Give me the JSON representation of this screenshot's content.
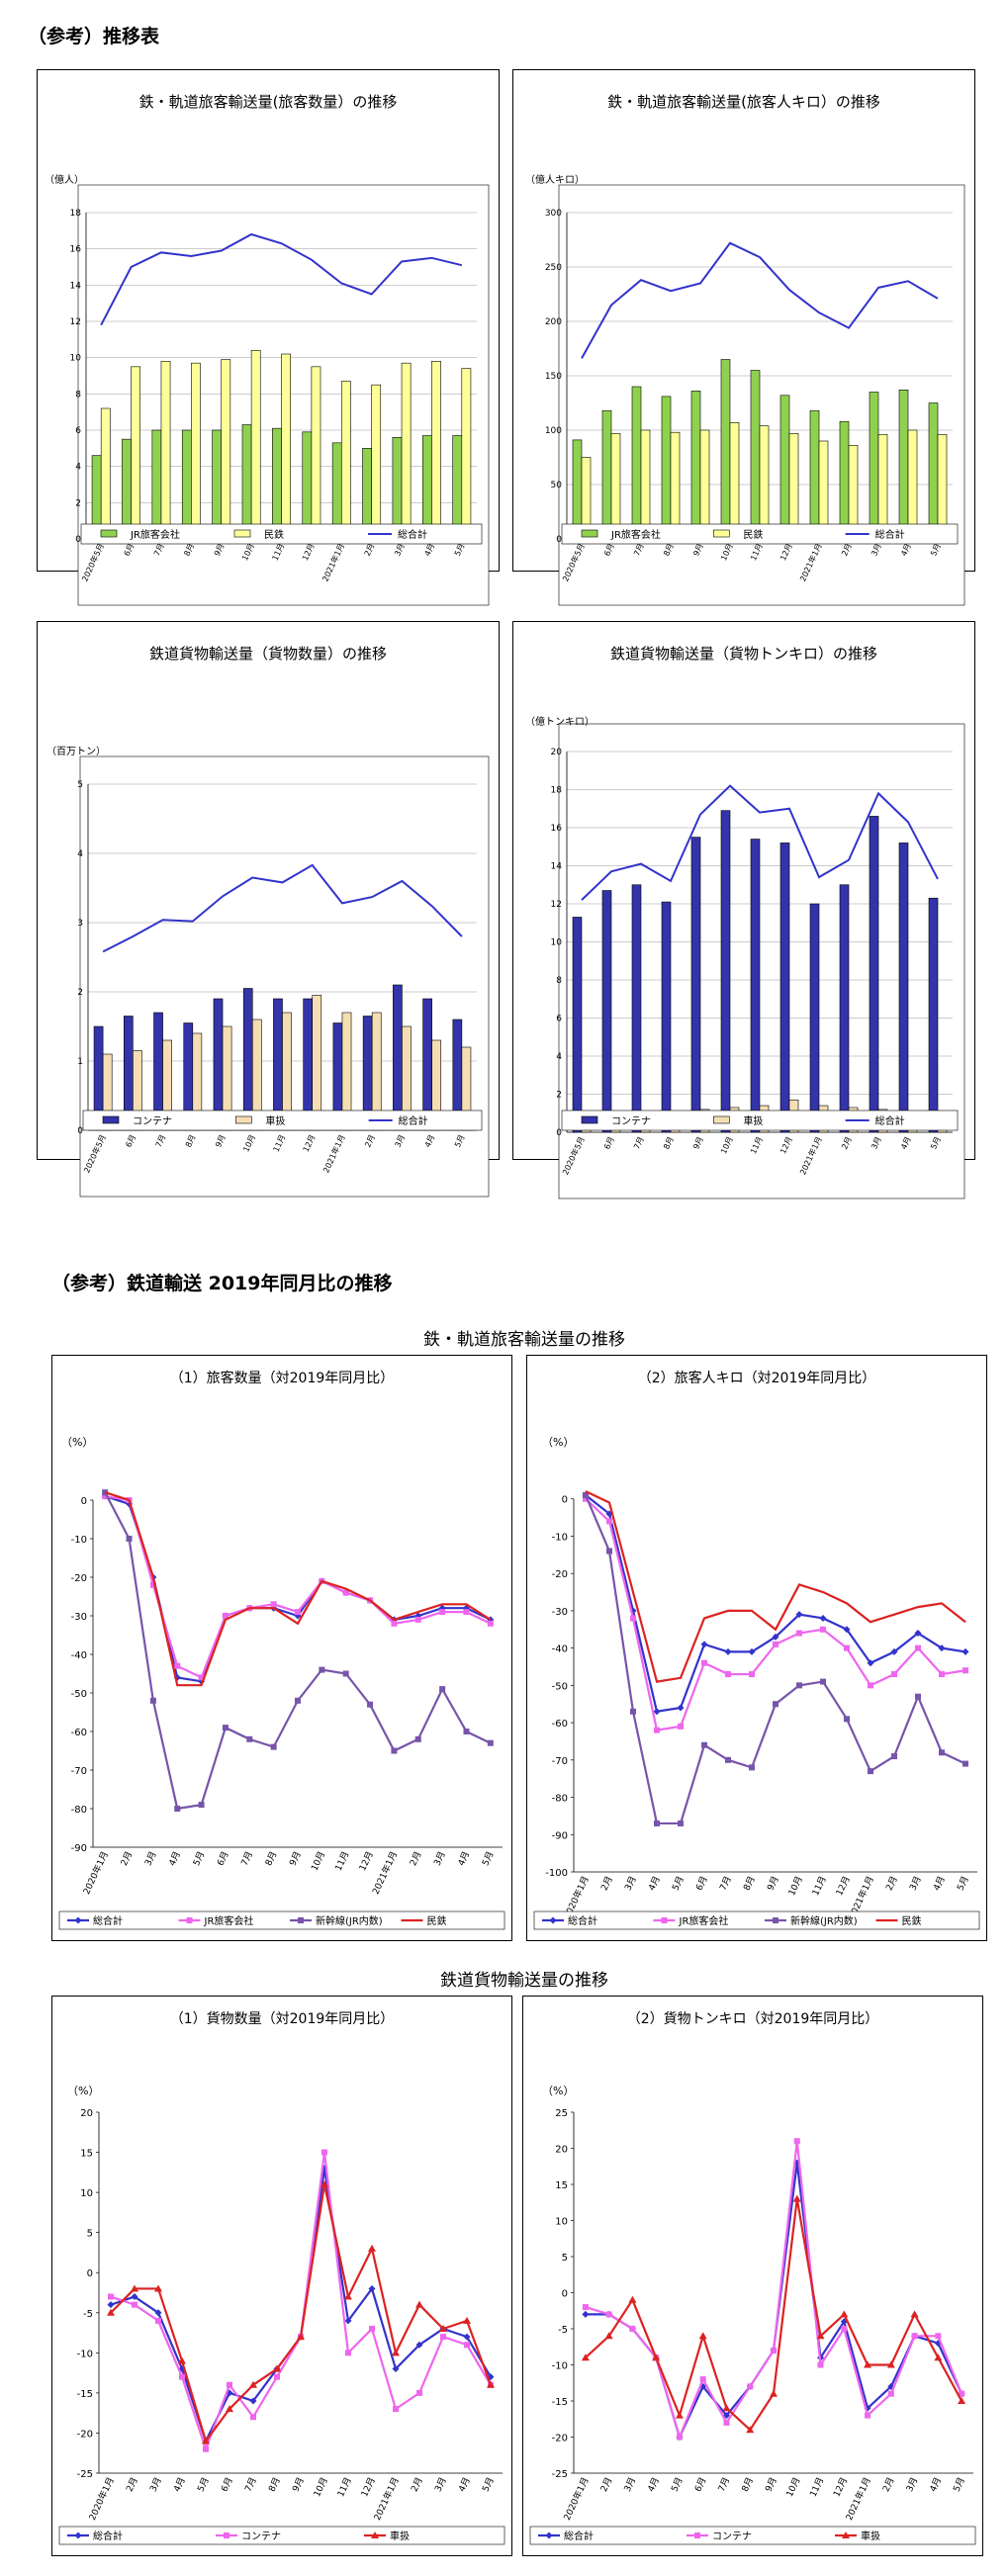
{
  "section1": {
    "title": "（参考）推移表"
  },
  "section2": {
    "title": "（参考）鉄道輸送 2019年同月比の推移"
  },
  "group_passenger_title": "鉄・軌道旅客輸送量の推移",
  "group_freight_title": "鉄道貨物輸送量の推移",
  "colors": {
    "jr": "#8fd14f",
    "private": "#ffff99",
    "total": "#3333cc",
    "container": "#3333aa",
    "wagon": "#f5deb3",
    "pct_total": "#3333cc",
    "pct_jr": "#ee66ee",
    "pct_shinkansen": "#7755aa",
    "pct_private": "#dd2222"
  },
  "chart_data": [
    {
      "id": "c1",
      "type": "bar",
      "title": "鉄・軌道旅客輸送量(旅客数量）の推移",
      "ylabel": "（億人）",
      "ylim": [
        0,
        18
      ],
      "ystep": 2,
      "categories": [
        "2020年5月",
        "6月",
        "7月",
        "8月",
        "9月",
        "10月",
        "11月",
        "12月",
        "2021年1月",
        "2月",
        "3月",
        "4月",
        "5月"
      ],
      "series": [
        {
          "name": "JR旅客会社",
          "kind": "bar",
          "color": "#8fd14f",
          "values": [
            4.6,
            5.5,
            6.0,
            6.0,
            6.0,
            6.3,
            6.1,
            5.9,
            5.3,
            5.0,
            5.6,
            5.7,
            5.7
          ]
        },
        {
          "name": "民鉄",
          "kind": "bar",
          "color": "#ffff99",
          "values": [
            7.2,
            9.5,
            9.8,
            9.7,
            9.9,
            10.4,
            10.2,
            9.5,
            8.7,
            8.5,
            9.7,
            9.8,
            9.4
          ]
        },
        {
          "name": "総合計",
          "kind": "line",
          "color": "#3333cc",
          "values": [
            11.8,
            15.0,
            15.8,
            15.6,
            15.9,
            16.8,
            16.3,
            15.4,
            14.1,
            13.5,
            15.3,
            15.5,
            15.1
          ]
        }
      ]
    },
    {
      "id": "c2",
      "type": "bar",
      "title": "鉄・軌道旅客輸送量(旅客人キロ）の推移",
      "ylabel": "（億人キロ）",
      "ylim": [
        0,
        300
      ],
      "ystep": 50,
      "categories": [
        "2020年5月",
        "6月",
        "7月",
        "8月",
        "9月",
        "10月",
        "11月",
        "12月",
        "2021年1月",
        "2月",
        "3月",
        "4月",
        "5月"
      ],
      "series": [
        {
          "name": "JR旅客会社",
          "kind": "bar",
          "color": "#8fd14f",
          "values": [
            91,
            118,
            140,
            131,
            136,
            165,
            155,
            132,
            118,
            108,
            135,
            137,
            125
          ]
        },
        {
          "name": "民鉄",
          "kind": "bar",
          "color": "#ffff99",
          "values": [
            75,
            97,
            100,
            98,
            100,
            107,
            104,
            97,
            90,
            86,
            96,
            100,
            96
          ]
        },
        {
          "name": "総合計",
          "kind": "line",
          "color": "#3333cc",
          "values": [
            166,
            215,
            238,
            228,
            235,
            272,
            259,
            229,
            208,
            194,
            231,
            237,
            221
          ]
        }
      ]
    },
    {
      "id": "c3",
      "type": "bar",
      "title": "鉄道貨物輸送量（貨物数量）の推移",
      "ylabel": "（百万トン）",
      "ylim": [
        0,
        5
      ],
      "ystep": 1,
      "categories": [
        "2020年5月",
        "6月",
        "7月",
        "8月",
        "9月",
        "10月",
        "11月",
        "12月",
        "2021年1月",
        "2月",
        "3月",
        "4月",
        "5月"
      ],
      "series": [
        {
          "name": "コンテナ",
          "kind": "bar",
          "color": "#3333aa",
          "values": [
            1.5,
            1.65,
            1.7,
            1.55,
            1.9,
            2.05,
            1.9,
            1.9,
            1.55,
            1.65,
            2.1,
            1.9,
            1.6
          ]
        },
        {
          "name": "車扱",
          "kind": "bar",
          "color": "#f5deb3",
          "values": [
            1.1,
            1.15,
            1.3,
            1.4,
            1.5,
            1.6,
            1.7,
            1.95,
            1.7,
            1.7,
            1.5,
            1.3,
            1.2
          ]
        },
        {
          "name": "総合計",
          "kind": "line",
          "color": "#3333cc",
          "values": [
            2.58,
            2.8,
            3.04,
            3.02,
            3.38,
            3.65,
            3.58,
            3.83,
            3.28,
            3.37,
            3.6,
            3.24,
            2.8
          ]
        }
      ]
    },
    {
      "id": "c4",
      "type": "bar",
      "title": "鉄道貨物輸送量（貨物トンキロ）の推移",
      "ylabel": "（億トンキロ）",
      "ylim": [
        0,
        20
      ],
      "ystep": 2,
      "categories": [
        "2020年5月",
        "6月",
        "7月",
        "8月",
        "9月",
        "10月",
        "11月",
        "12月",
        "2021年1月",
        "2月",
        "3月",
        "4月",
        "5月"
      ],
      "series": [
        {
          "name": "コンテナ",
          "kind": "bar",
          "color": "#3333aa",
          "values": [
            11.3,
            12.7,
            13.0,
            12.1,
            15.5,
            16.9,
            15.4,
            15.2,
            12.0,
            13.0,
            16.6,
            15.2,
            12.3
          ]
        },
        {
          "name": "車扱",
          "kind": "bar",
          "color": "#f5deb3",
          "values": [
            0.9,
            1.0,
            1.1,
            1.1,
            1.2,
            1.3,
            1.4,
            1.7,
            1.4,
            1.3,
            1.2,
            1.1,
            1.0
          ]
        },
        {
          "name": "総合計",
          "kind": "line",
          "color": "#3333cc",
          "values": [
            12.2,
            13.7,
            14.1,
            13.2,
            16.7,
            18.2,
            16.8,
            17.0,
            13.4,
            14.3,
            17.8,
            16.3,
            13.3
          ]
        }
      ]
    },
    {
      "id": "c5",
      "type": "line",
      "title": "（1）旅客数量（対2019年同月比）",
      "ylabel": "（%）",
      "ylim": [
        -90,
        10
      ],
      "ystep": 10,
      "yfirst": 0,
      "categories": [
        "2020年1月",
        "2月",
        "3月",
        "4月",
        "5月",
        "6月",
        "7月",
        "8月",
        "9月",
        "10月",
        "11月",
        "12月",
        "2021年1月",
        "2月",
        "3月",
        "4月",
        "5月"
      ],
      "series": [
        {
          "name": "総合計",
          "color": "#3333cc",
          "marker": "diamond",
          "values": [
            1,
            -1,
            -20,
            -46,
            -47,
            -30,
            -28,
            -28,
            -30,
            -21,
            -24,
            -26,
            -31,
            -30,
            -28,
            -28,
            -31
          ]
        },
        {
          "name": "JR旅客会社",
          "color": "#ee66ee",
          "marker": "square",
          "values": [
            1,
            0,
            -22,
            -43,
            -46,
            -30,
            -28,
            -27,
            -29,
            -21,
            -24,
            -26,
            -32,
            -31,
            -29,
            -29,
            -32
          ]
        },
        {
          "name": "新幹線(JR内数)",
          "color": "#7755aa",
          "marker": "square",
          "values": [
            2,
            -10,
            -52,
            -80,
            -79,
            -59,
            -62,
            -64,
            -52,
            -44,
            -45,
            -53,
            -65,
            -62,
            -49,
            -60,
            -63
          ]
        },
        {
          "name": "民鉄",
          "color": "#dd2222",
          "marker": "none",
          "values": [
            2,
            0,
            -20,
            -48,
            -48,
            -31,
            -28,
            -28,
            -32,
            -21,
            -23,
            -26,
            -31,
            -29,
            -27,
            -27,
            -31
          ]
        }
      ]
    },
    {
      "id": "c6",
      "type": "line",
      "title": "（2）旅客人キロ（対2019年同月比）",
      "ylabel": "（%）",
      "ylim": [
        -100,
        10
      ],
      "ystep": 10,
      "yfirst": 0,
      "categories": [
        "2020年1月",
        "2月",
        "3月",
        "4月",
        "5月",
        "6月",
        "7月",
        "8月",
        "9月",
        "10月",
        "11月",
        "12月",
        "2021年1月",
        "2月",
        "3月",
        "4月",
        "5月"
      ],
      "series": [
        {
          "name": "総合計",
          "color": "#3333cc",
          "marker": "diamond",
          "values": [
            1,
            -4,
            -30,
            -57,
            -56,
            -39,
            -41,
            -41,
            -37,
            -31,
            -32,
            -35,
            -44,
            -41,
            -36,
            -40,
            -41
          ]
        },
        {
          "name": "JR旅客会社",
          "color": "#ee66ee",
          "marker": "square",
          "values": [
            0,
            -6,
            -32,
            -62,
            -61,
            -44,
            -47,
            -47,
            -39,
            -36,
            -35,
            -40,
            -50,
            -47,
            -40,
            -47,
            -46
          ]
        },
        {
          "name": "新幹線(JR内数)",
          "color": "#7755aa",
          "marker": "square",
          "values": [
            1,
            -14,
            -57,
            -87,
            -87,
            -66,
            -70,
            -72,
            -55,
            -50,
            -49,
            -59,
            -73,
            -69,
            -53,
            -68,
            -71
          ]
        },
        {
          "name": "民鉄",
          "color": "#dd2222",
          "marker": "none",
          "values": [
            2,
            -1,
            -25,
            -49,
            -48,
            -32,
            -30,
            -30,
            -35,
            -23,
            -25,
            -28,
            -33,
            -31,
            -29,
            -28,
            -33
          ]
        }
      ]
    },
    {
      "id": "c7",
      "type": "line",
      "title": "（1）貨物数量（対2019年同月比）",
      "ylabel": "（%）",
      "ylim": [
        -25,
        20
      ],
      "ystep": 5,
      "yfirst": 20,
      "categories": [
        "2020年1月",
        "2月",
        "3月",
        "4月",
        "5月",
        "6月",
        "7月",
        "8月",
        "9月",
        "10月",
        "11月",
        "12月",
        "2021年1月",
        "2月",
        "3月",
        "4月",
        "5月"
      ],
      "series": [
        {
          "name": "総合計",
          "color": "#3333cc",
          "marker": "diamond",
          "values": [
            -4,
            -3,
            -5,
            -12,
            -21,
            -15,
            -16,
            -12,
            -8,
            13,
            -6,
            -2,
            -12,
            -9,
            -7,
            -8,
            -13
          ]
        },
        {
          "name": "コンテナ",
          "color": "#ee66ee",
          "marker": "square",
          "values": [
            -3,
            -4,
            -6,
            -13,
            -22,
            -14,
            -18,
            -13,
            -8,
            15,
            -10,
            -7,
            -17,
            -15,
            -8,
            -9,
            -14
          ]
        },
        {
          "name": "車扱",
          "color": "#dd2222",
          "marker": "triangle",
          "values": [
            -5,
            -2,
            -2,
            -11,
            -21,
            -17,
            -14,
            -12,
            -8,
            11,
            -3,
            3,
            -10,
            -4,
            -7,
            -6,
            -14
          ]
        }
      ]
    },
    {
      "id": "c8",
      "type": "line",
      "title": "（2）貨物トンキロ（対2019年同月比）",
      "ylabel": "（%）",
      "ylim": [
        -25,
        25
      ],
      "ystep": 5,
      "yfirst": 25,
      "categories": [
        "2020年1月",
        "2月",
        "3月",
        "4月",
        "5月",
        "6月",
        "7月",
        "8月",
        "9月",
        "10月",
        "11月",
        "12月",
        "2021年1月",
        "2月",
        "3月",
        "4月",
        "5月"
      ],
      "series": [
        {
          "name": "総合計",
          "color": "#3333cc",
          "marker": "diamond",
          "values": [
            -3,
            -3,
            -5,
            -9,
            -20,
            -13,
            -17,
            -13,
            -8,
            18,
            -9,
            -4,
            -16,
            -13,
            -6,
            -7,
            -14
          ]
        },
        {
          "name": "コンテナ",
          "color": "#ee66ee",
          "marker": "square",
          "values": [
            -2,
            -3,
            -5,
            -9,
            -20,
            -12,
            -18,
            -13,
            -8,
            21,
            -10,
            -5,
            -17,
            -14,
            -6,
            -6,
            -14
          ]
        },
        {
          "name": "車扱",
          "color": "#dd2222",
          "marker": "triangle",
          "values": [
            -9,
            -6,
            -1,
            -9,
            -17,
            -6,
            -16,
            -19,
            -14,
            13,
            -6,
            -3,
            -10,
            -10,
            -3,
            -9,
            -15
          ]
        }
      ]
    }
  ]
}
